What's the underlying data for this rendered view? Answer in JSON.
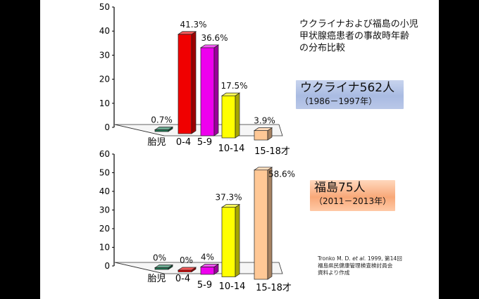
{
  "heading": "ウクライナおよび福島の小児\n甲状腺癌患者の事故時年齢\nの分布比較",
  "source": {
    "line1_pre": "Tronko M. D. ",
    "line1_italic": "et al.",
    "line1_post": " 1999, 第14回",
    "line2": "福島県民健康管理検査検討員会",
    "line3": "資料より作成"
  },
  "chart_data": [
    {
      "type": "bar",
      "name": "ウクライナ562人",
      "period": "（1986－1997年）",
      "categories": [
        "胎児",
        "0-4",
        "5-9",
        "10-14",
        "15-18才"
      ],
      "values": [
        0.7,
        41.3,
        36.6,
        17.5,
        3.9
      ],
      "labels": [
        "0.7%",
        "41.3%",
        "36.6%",
        "17.5%",
        "3.9%"
      ],
      "ylim": [
        0,
        50
      ],
      "yticks": [
        "0",
        "10",
        "20",
        "30",
        "40",
        "50"
      ],
      "colors": [
        "#1f7a55",
        "#f00000",
        "#ee00ee",
        "#ffff00",
        "#ffc896"
      ]
    },
    {
      "type": "bar",
      "name": "福島75人",
      "period": "（2011－2013年）",
      "categories": [
        "胎児",
        "0-4",
        "5-9",
        "10-14",
        "15-18才"
      ],
      "values": [
        0,
        0,
        4,
        37.3,
        58.6
      ],
      "labels": [
        "0%",
        "0%",
        "4%",
        "37.3%",
        "58.6%"
      ],
      "ylim": [
        0,
        60
      ],
      "yticks": [
        "0",
        "10",
        "20",
        "30",
        "40",
        "50",
        "60"
      ],
      "colors": [
        "#1f7a55",
        "#f00000",
        "#ee00ee",
        "#ffff00",
        "#ffc896"
      ]
    }
  ]
}
